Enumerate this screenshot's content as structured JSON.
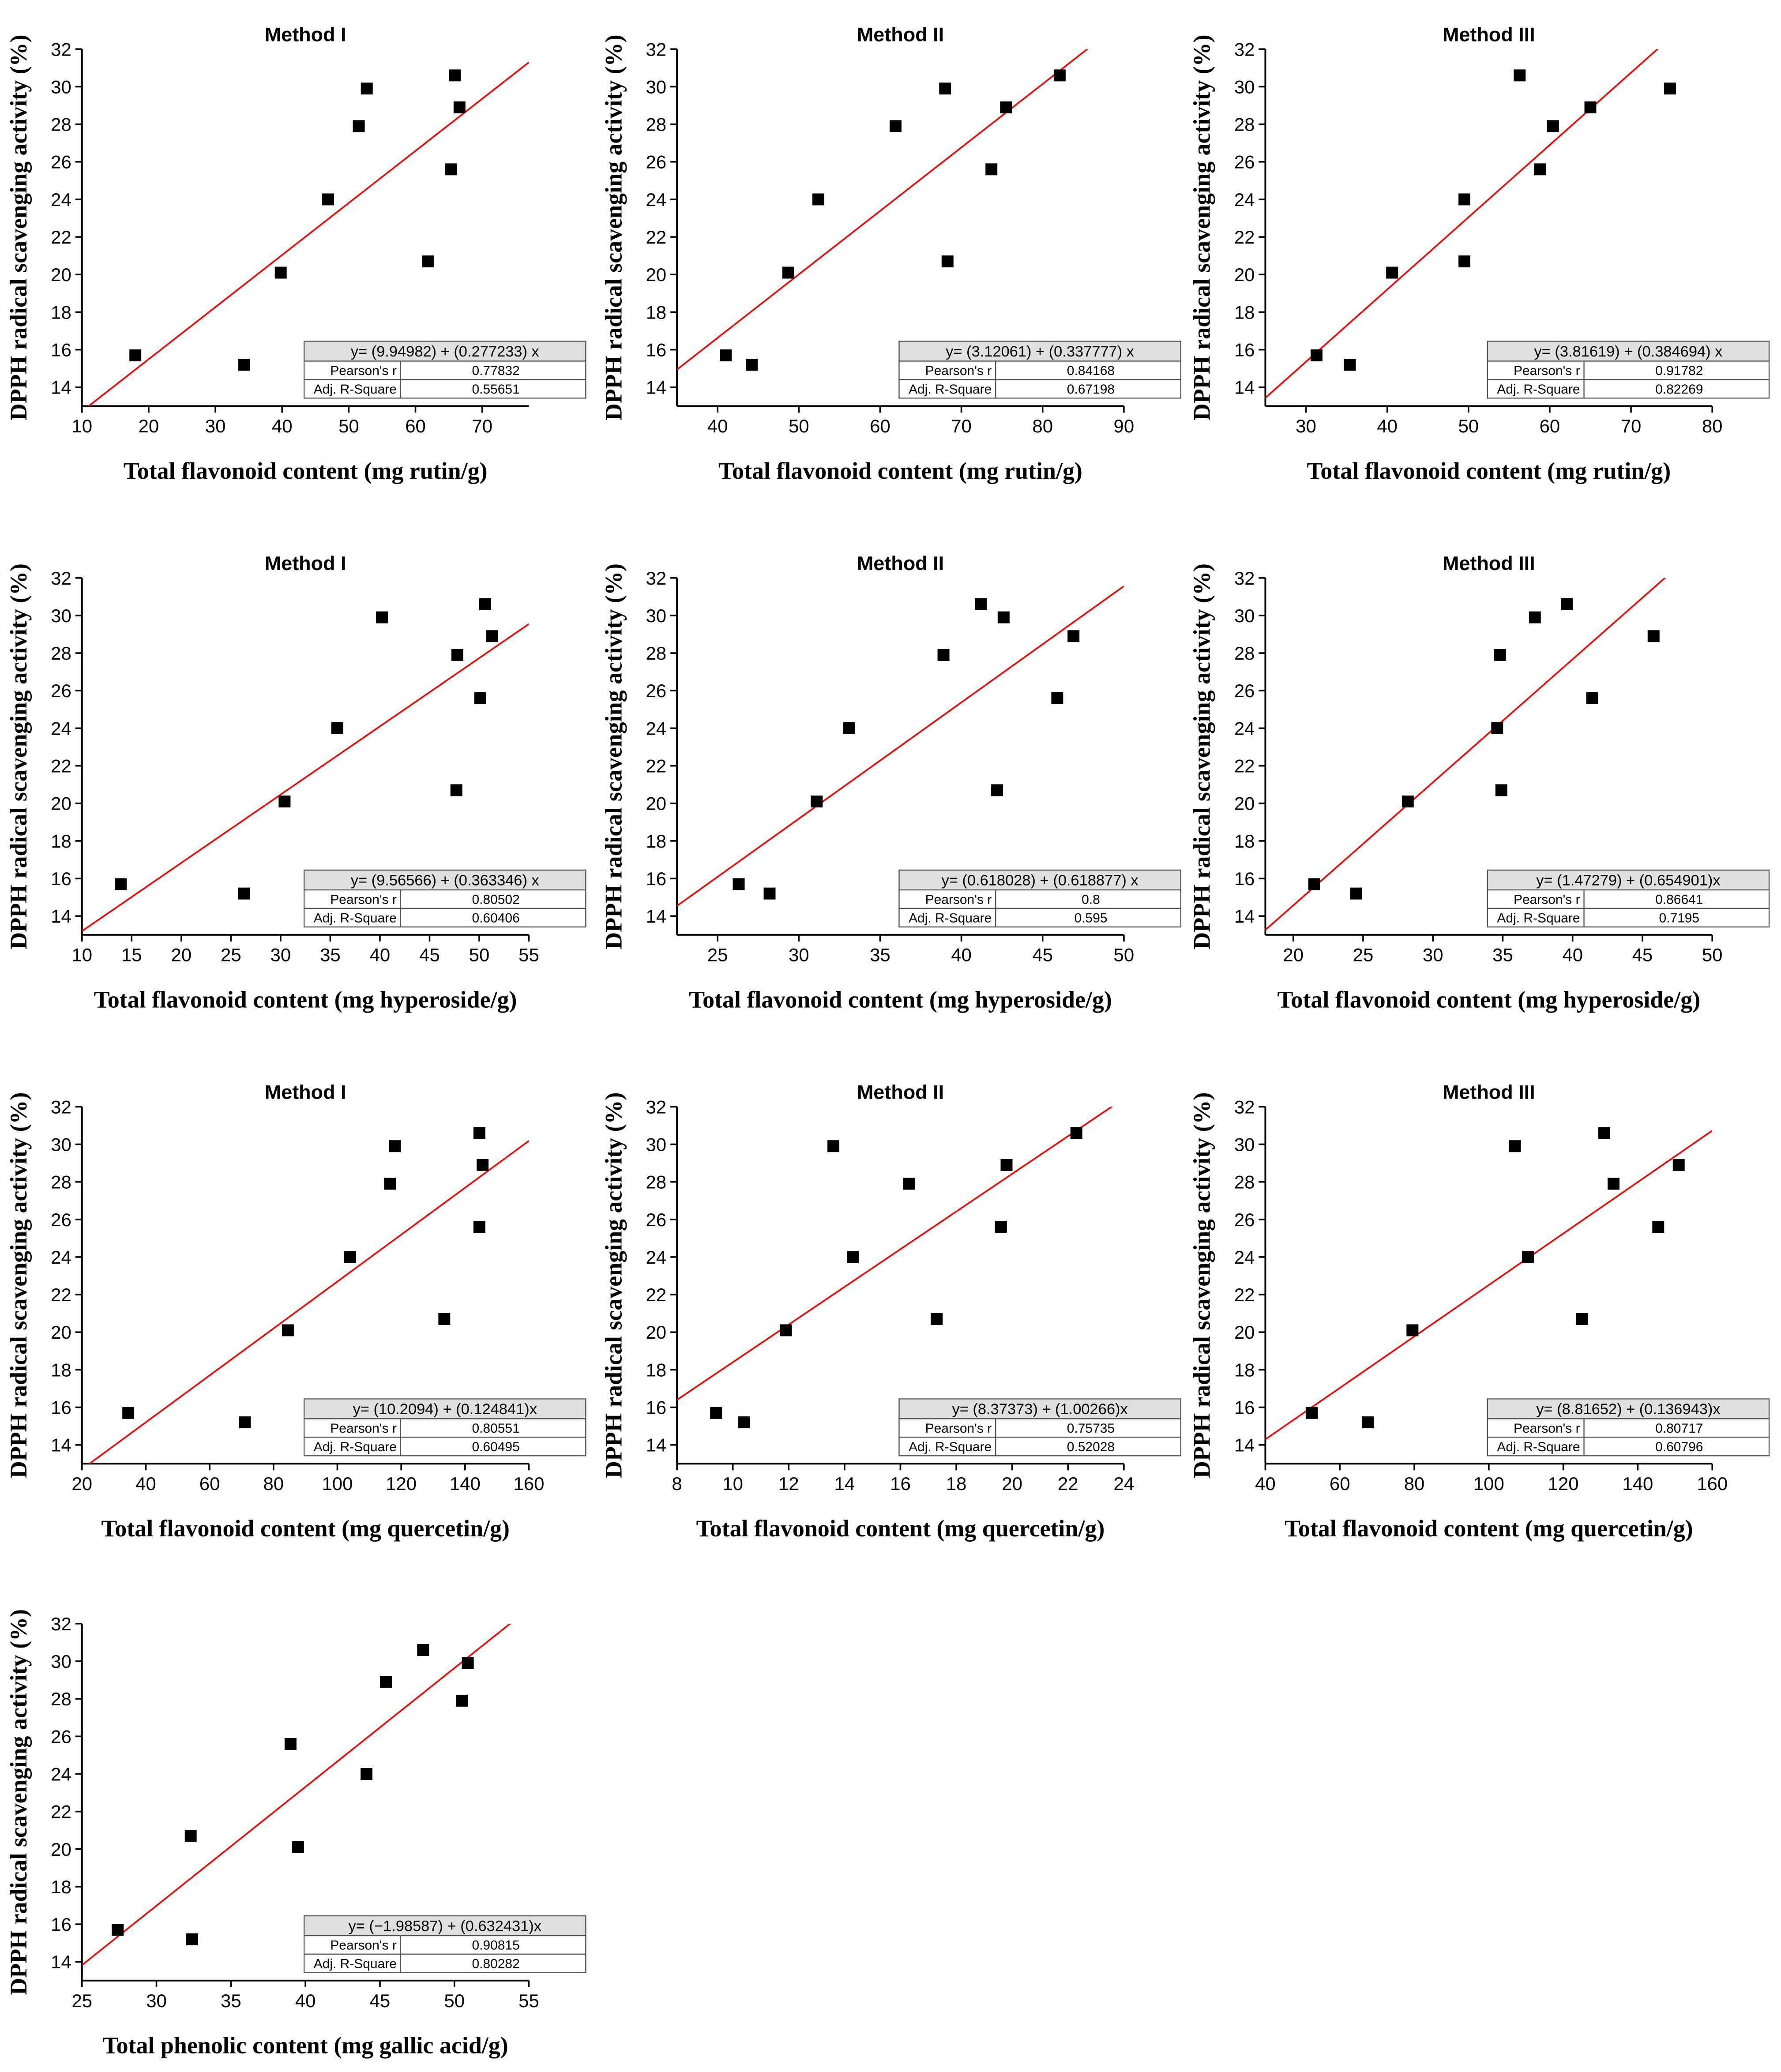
{
  "chart_data": [
    {
      "type": "scatter",
      "title": "Method I",
      "xlabel": "Total flavonoid content (mg rutin/g)",
      "ylabel": "DPPH radical scavenging activity (%)",
      "x": [
        18,
        34.3,
        39.8,
        46.9,
        51.5,
        52.7,
        65.9,
        66.6,
        65.3,
        61.9
      ],
      "values": [
        15.7,
        15.2,
        20.1,
        24.0,
        27.9,
        29.9,
        30.6,
        28.9,
        25.6,
        20.7
      ],
      "marker_color": "#000000",
      "xlim": [
        10,
        77
      ],
      "xticks": [
        10,
        20,
        30,
        40,
        50,
        60,
        70
      ],
      "ylim": [
        13,
        32
      ],
      "yticks": [
        14,
        16,
        18,
        20,
        22,
        24,
        26,
        28,
        30,
        32
      ],
      "fit": {
        "intercept": 9.94982,
        "slope": 0.277233,
        "color": "#ff0000"
      },
      "equation": "y= (9.94982) + (0.277233) x",
      "stats": [
        {
          "label": "Pearson's r",
          "value": 0.77832
        },
        {
          "label": "Adj. R-Square",
          "value": 0.55651
        }
      ]
    },
    {
      "type": "scatter",
      "title": "Method II",
      "xlabel": "Total flavonoid content (mg rutin/g)",
      "ylabel": "DPPH radical scavenging activity (%)",
      "x": [
        41,
        44.2,
        48.7,
        52.4,
        61.9,
        68,
        82.1,
        75.5,
        73.7,
        68.3
      ],
      "values": [
        15.7,
        15.2,
        20.1,
        24.0,
        27.9,
        29.9,
        30.6,
        28.9,
        25.6,
        20.7
      ],
      "marker_color": "#000000",
      "xlim": [
        35,
        90
      ],
      "xticks": [
        40,
        50,
        60,
        70,
        80,
        90
      ],
      "ylim": [
        13,
        32
      ],
      "yticks": [
        14,
        16,
        18,
        20,
        22,
        24,
        26,
        28,
        30,
        32
      ],
      "fit": {
        "intercept": 3.12061,
        "slope": 0.337777,
        "color": "#ff0000"
      },
      "equation": "y= (3.12061) + (0.337777) x",
      "stats": [
        {
          "label": "Pearson's r",
          "value": 0.84168
        },
        {
          "label": "Adj. R-Square",
          "value": 0.67198
        }
      ]
    },
    {
      "type": "scatter",
      "title": "Method III",
      "xlabel": "Total flavonoid content (mg rutin/g)",
      "ylabel": "DPPH radical scavenging activity (%)",
      "x": [
        31.3,
        35.4,
        40.6,
        49.5,
        60.4,
        74.8,
        56.3,
        65,
        58.8,
        49.5
      ],
      "values": [
        15.7,
        15.2,
        20.1,
        24.0,
        27.9,
        29.9,
        30.6,
        28.9,
        25.6,
        20.7
      ],
      "marker_color": "#000000",
      "xlim": [
        25,
        80
      ],
      "xticks": [
        30,
        40,
        50,
        60,
        70,
        80
      ],
      "ylim": [
        13,
        32
      ],
      "yticks": [
        14,
        16,
        18,
        20,
        22,
        24,
        26,
        28,
        30,
        32
      ],
      "fit": {
        "intercept": 3.81619,
        "slope": 0.384694,
        "color": "#ff0000"
      },
      "equation": "y= (3.81619) + (0.384694) x",
      "stats": [
        {
          "label": "Pearson's r",
          "value": 0.91782
        },
        {
          "label": "Adj. R-Square",
          "value": 0.82269
        }
      ]
    },
    {
      "type": "scatter",
      "title": "Method I",
      "xlabel": "Total flavonoid content (mg hyperoside/g)",
      "ylabel": "DPPH radical scavenging activity (%)",
      "x": [
        13.9,
        26.3,
        30.4,
        35.7,
        47.8,
        40.2,
        50.6,
        51.3,
        50.1,
        47.7
      ],
      "values": [
        15.7,
        15.2,
        20.1,
        24.0,
        27.9,
        29.9,
        30.6,
        28.9,
        25.6,
        20.7
      ],
      "marker_color": "#000000",
      "xlim": [
        10,
        55
      ],
      "xticks": [
        10,
        15,
        20,
        25,
        30,
        35,
        40,
        45,
        50,
        55
      ],
      "ylim": [
        13,
        32
      ],
      "yticks": [
        14,
        16,
        18,
        20,
        22,
        24,
        26,
        28,
        30,
        32
      ],
      "fit": {
        "intercept": 9.56566,
        "slope": 0.363346,
        "color": "#ff0000"
      },
      "equation": "y= (9.56566) + (0.363346) x",
      "stats": [
        {
          "label": "Pearson's r",
          "value": 0.80502
        },
        {
          "label": "Adj. R-Square",
          "value": 0.60406
        }
      ]
    },
    {
      "type": "scatter",
      "title": "Method II",
      "xlabel": "Total flavonoid content (mg hyperoside/g)",
      "ylabel": "DPPH radical scavenging activity (%)",
      "x": [
        26.3,
        28.2,
        31.1,
        33.1,
        38.9,
        42.6,
        41.2,
        46.9,
        45.9,
        42.2
      ],
      "values": [
        15.7,
        15.2,
        20.1,
        24.0,
        27.9,
        29.9,
        30.6,
        28.9,
        25.6,
        20.7
      ],
      "marker_color": "#000000",
      "xlim": [
        22.5,
        50
      ],
      "xticks": [
        25,
        30,
        35,
        40,
        45,
        50
      ],
      "ylim": [
        13,
        32
      ],
      "yticks": [
        14,
        16,
        18,
        20,
        22,
        24,
        26,
        28,
        30,
        32
      ],
      "fit": {
        "intercept": 0.618028,
        "slope": 0.618877,
        "color": "#ff0000"
      },
      "equation": "y= (0.618028) + (0.618877) x",
      "stats": [
        {
          "label": "Pearson's r",
          "value": 0.8
        },
        {
          "label": "Adj. R-Square",
          "value": 0.595
        }
      ]
    },
    {
      "type": "scatter",
      "title": "Method III",
      "xlabel": "Total flavonoid content (mg hyperoside/g)",
      "ylabel": "DPPH radical scavenging activity (%)",
      "x": [
        21.5,
        24.5,
        28.2,
        34.6,
        34.8,
        37.3,
        39.6,
        45.8,
        41.4,
        34.9
      ],
      "values": [
        15.7,
        15.2,
        20.1,
        24.0,
        27.9,
        29.9,
        30.6,
        28.9,
        25.6,
        20.7
      ],
      "marker_color": "#000000",
      "xlim": [
        18,
        50
      ],
      "xticks": [
        20,
        25,
        30,
        35,
        40,
        45,
        50
      ],
      "ylim": [
        13,
        32
      ],
      "yticks": [
        14,
        16,
        18,
        20,
        22,
        24,
        26,
        28,
        30,
        32
      ],
      "fit": {
        "intercept": 1.47279,
        "slope": 0.654901,
        "color": "#ff0000"
      },
      "equation": "y= (1.47279) + (0.654901)x",
      "stats": [
        {
          "label": "Pearson's r",
          "value": 0.86641
        },
        {
          "label": "Adj. R-Square",
          "value": 0.7195
        }
      ]
    },
    {
      "type": "scatter",
      "title": "Method I",
      "xlabel": "Total flavonoid content  (mg quercetin/g)",
      "ylabel": "DPPH radical scavenging activity (%)",
      "x": [
        34.5,
        71,
        84.5,
        104,
        116.5,
        118,
        144.5,
        145.5,
        144.5,
        133.5
      ],
      "values": [
        15.7,
        15.2,
        20.1,
        24.0,
        27.9,
        29.9,
        30.6,
        28.9,
        25.6,
        20.7
      ],
      "marker_color": "#000000",
      "xlim": [
        20,
        160
      ],
      "xticks": [
        20,
        40,
        60,
        80,
        100,
        120,
        140,
        160
      ],
      "ylim": [
        13,
        32
      ],
      "yticks": [
        14,
        16,
        18,
        20,
        22,
        24,
        26,
        28,
        30,
        32
      ],
      "fit": {
        "intercept": 10.2094,
        "slope": 0.124841,
        "color": "#ff0000"
      },
      "equation": "y= (10.2094) + (0.124841)x",
      "stats": [
        {
          "label": "Pearson's r",
          "value": 0.80551
        },
        {
          "label": "Adj. R-Square",
          "value": 0.60495
        }
      ]
    },
    {
      "type": "scatter",
      "title": "Method II",
      "xlabel": "Total flavonoid content (mg quercetin/g)",
      "ylabel": "DPPH radical scavenging activity (%)",
      "x": [
        9.4,
        10.4,
        11.9,
        14.3,
        16.3,
        13.6,
        22.3,
        19.8,
        19.6,
        17.3
      ],
      "values": [
        15.7,
        15.2,
        20.1,
        24.0,
        27.9,
        29.9,
        30.6,
        28.9,
        25.6,
        20.7
      ],
      "marker_color": "#000000",
      "xlim": [
        8,
        24
      ],
      "xticks": [
        8,
        10,
        12,
        14,
        16,
        18,
        20,
        22,
        24
      ],
      "ylim": [
        13,
        32
      ],
      "yticks": [
        14,
        16,
        18,
        20,
        22,
        24,
        26,
        28,
        30,
        32
      ],
      "fit": {
        "intercept": 8.37373,
        "slope": 1.00266,
        "color": "#ff0000"
      },
      "equation": "y= (8.37373) + (1.00266)x",
      "stats": [
        {
          "label": "Pearson's r",
          "value": 0.75735
        },
        {
          "label": "Adj. R-Square",
          "value": 0.52028
        }
      ]
    },
    {
      "type": "scatter",
      "title": "Method III",
      "xlabel": "Total flavonoid content (mg quercetin/g)",
      "ylabel": "DPPH radical scavenging activity (%)",
      "x": [
        52.5,
        67.5,
        79.5,
        110.5,
        133.5,
        107,
        131,
        151,
        145.5,
        125
      ],
      "values": [
        15.7,
        15.2,
        20.1,
        24.0,
        27.9,
        29.9,
        30.6,
        28.9,
        25.6,
        20.7
      ],
      "marker_color": "#000000",
      "xlim": [
        40,
        160
      ],
      "xticks": [
        40,
        60,
        80,
        100,
        120,
        140,
        160
      ],
      "ylim": [
        13,
        32
      ],
      "yticks": [
        14,
        16,
        18,
        20,
        22,
        24,
        26,
        28,
        30,
        32
      ],
      "fit": {
        "intercept": 8.81652,
        "slope": 0.136943,
        "color": "#ff0000"
      },
      "equation": "y= (8.81652) + (0.136943)x",
      "stats": [
        {
          "label": "Pearson's r",
          "value": 0.80717
        },
        {
          "label": "Adj. R-Square",
          "value": 0.60796
        }
      ]
    },
    {
      "type": "scatter",
      "xlabel": "Total phenolic content (mg gallic acid/g)",
      "ylabel": "DPPH radical scavenging activity (%)",
      "x": [
        27.4,
        32.4,
        39.5,
        44.1,
        50.5,
        50.9,
        47.9,
        45.4,
        39,
        32.3
      ],
      "values": [
        15.7,
        15.2,
        20.1,
        24.0,
        27.9,
        29.9,
        30.6,
        28.9,
        25.6,
        20.7
      ],
      "marker_color": "#000000",
      "xlim": [
        25,
        55
      ],
      "xticks": [
        25,
        30,
        35,
        40,
        45,
        50,
        55
      ],
      "ylim": [
        13,
        32
      ],
      "yticks": [
        14,
        16,
        18,
        20,
        22,
        24,
        26,
        28,
        30,
        32
      ],
      "fit": {
        "intercept": -1.98587,
        "slope": 0.632431,
        "color": "#ff0000"
      },
      "equation": "y= (−1.98587) + (0.632431)x",
      "stats": [
        {
          "label": "Pearson's r",
          "value": 0.90815
        },
        {
          "label": "Adj. R-Square",
          "value": 0.80282
        }
      ]
    }
  ]
}
